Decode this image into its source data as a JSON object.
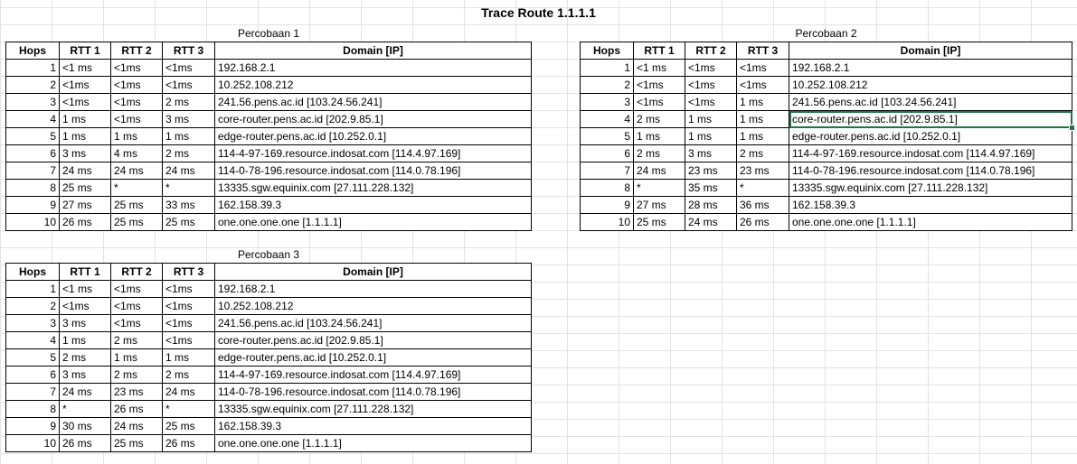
{
  "sheet": {
    "title": "Trace Route 1.1.1.1",
    "columns": {
      "hops": "Hops",
      "rtt1": "RTT 1",
      "rtt2": "RTT 2",
      "rtt3": "RTT 3",
      "domain": "Domain [IP]"
    },
    "trials": [
      {
        "caption": "Percobaan 1",
        "rows": [
          {
            "hop": "1",
            "rtt1": "<1 ms",
            "rtt2": "<1ms",
            "rtt3": "<1ms",
            "domain": "192.168.2.1"
          },
          {
            "hop": "2",
            "rtt1": "<1ms",
            "rtt2": "<1ms",
            "rtt3": "<1ms",
            "domain": "10.252.108.212"
          },
          {
            "hop": "3",
            "rtt1": "<1ms",
            "rtt2": "<1ms",
            "rtt3": "2 ms",
            "domain": "241.56.pens.ac.id [103.24.56.241]"
          },
          {
            "hop": "4",
            "rtt1": "1 ms",
            "rtt2": "<1ms",
            "rtt3": "3 ms",
            "domain": "core-router.pens.ac.id [202.9.85.1]"
          },
          {
            "hop": "5",
            "rtt1": "1 ms",
            "rtt2": "1 ms",
            "rtt3": "1 ms",
            "domain": "edge-router.pens.ac.id [10.252.0.1]"
          },
          {
            "hop": "6",
            "rtt1": "3 ms",
            "rtt2": "4 ms",
            "rtt3": "2 ms",
            "domain": "114-4-97-169.resource.indosat.com [114.4.97.169]"
          },
          {
            "hop": "7",
            "rtt1": "24 ms",
            "rtt2": "24 ms",
            "rtt3": "24 ms",
            "domain": "114-0-78-196.resource.indosat.com [114.0.78.196]"
          },
          {
            "hop": "8",
            "rtt1": "25 ms",
            "rtt2": "*",
            "rtt3": "*",
            "domain": "13335.sgw.equinix.com [27.111.228.132]"
          },
          {
            "hop": "9",
            "rtt1": "27 ms",
            "rtt2": "25 ms",
            "rtt3": "33 ms",
            "domain": "162.158.39.3"
          },
          {
            "hop": "10",
            "rtt1": "26 ms",
            "rtt2": "25 ms",
            "rtt3": "25 ms",
            "domain": "one.one.one.one [1.1.1.1]"
          }
        ]
      },
      {
        "caption": "Percobaan 2",
        "rows": [
          {
            "hop": "1",
            "rtt1": "<1 ms",
            "rtt2": "<1ms",
            "rtt3": "<1ms",
            "domain": "192.168.2.1"
          },
          {
            "hop": "2",
            "rtt1": "<1ms",
            "rtt2": "<1ms",
            "rtt3": "<1ms",
            "domain": "10.252.108.212"
          },
          {
            "hop": "3",
            "rtt1": "<1ms",
            "rtt2": "<1ms",
            "rtt3": "1 ms",
            "domain": "241.56.pens.ac.id [103.24.56.241]"
          },
          {
            "hop": "4",
            "rtt1": "2 ms",
            "rtt2": "1 ms",
            "rtt3": "1 ms",
            "domain": "core-router.pens.ac.id [202.9.85.1]"
          },
          {
            "hop": "5",
            "rtt1": "1 ms",
            "rtt2": "1 ms",
            "rtt3": "1 ms",
            "domain": "edge-router.pens.ac.id [10.252.0.1]"
          },
          {
            "hop": "6",
            "rtt1": "2 ms",
            "rtt2": "3 ms",
            "rtt3": "2 ms",
            "domain": "114-4-97-169.resource.indosat.com [114.4.97.169]"
          },
          {
            "hop": "7",
            "rtt1": "24 ms",
            "rtt2": "23 ms",
            "rtt3": "23 ms",
            "domain": "114-0-78-196.resource.indosat.com [114.0.78.196]"
          },
          {
            "hop": "8",
            "rtt1": "*",
            "rtt2": "35 ms",
            "rtt3": "*",
            "domain": "13335.sgw.equinix.com [27.111.228.132]"
          },
          {
            "hop": "9",
            "rtt1": "27 ms",
            "rtt2": "28 ms",
            "rtt3": "36 ms",
            "domain": "162.158.39.3"
          },
          {
            "hop": "10",
            "rtt1": "25 ms",
            "rtt2": "24 ms",
            "rtt3": "26 ms",
            "domain": "one.one.one.one [1.1.1.1]"
          }
        ]
      },
      {
        "caption": "Percobaan 3",
        "rows": [
          {
            "hop": "1",
            "rtt1": "<1 ms",
            "rtt2": "<1ms",
            "rtt3": "<1ms",
            "domain": "192.168.2.1"
          },
          {
            "hop": "2",
            "rtt1": "<1ms",
            "rtt2": "<1ms",
            "rtt3": "<1ms",
            "domain": "10.252.108.212"
          },
          {
            "hop": "3",
            "rtt1": "3 ms",
            "rtt2": "<1ms",
            "rtt3": "<1ms",
            "domain": "241.56.pens.ac.id [103.24.56.241]"
          },
          {
            "hop": "4",
            "rtt1": "1 ms",
            "rtt2": "2 ms",
            "rtt3": "<1ms",
            "domain": "core-router.pens.ac.id [202.9.85.1]"
          },
          {
            "hop": "5",
            "rtt1": "2 ms",
            "rtt2": "1 ms",
            "rtt3": "1 ms",
            "domain": "edge-router.pens.ac.id [10.252.0.1]"
          },
          {
            "hop": "6",
            "rtt1": "3 ms",
            "rtt2": "2 ms",
            "rtt3": "2 ms",
            "domain": "114-4-97-169.resource.indosat.com [114.4.97.169]"
          },
          {
            "hop": "7",
            "rtt1": "24 ms",
            "rtt2": "23 ms",
            "rtt3": "24 ms",
            "domain": "114-0-78-196.resource.indosat.com [114.0.78.196]"
          },
          {
            "hop": "8",
            "rtt1": "*",
            "rtt2": "26 ms",
            "rtt3": "*",
            "domain": "13335.sgw.equinix.com [27.111.228.132]"
          },
          {
            "hop": "9",
            "rtt1": "30 ms",
            "rtt2": "24 ms",
            "rtt3": "25 ms",
            "domain": "162.158.39.3"
          },
          {
            "hop": "10",
            "rtt1": "26 ms",
            "rtt2": "25 ms",
            "rtt3": "26 ms",
            "domain": "one.one.one.one [1.1.1.1]"
          }
        ]
      }
    ],
    "selection": {
      "trial": 1,
      "row": 3,
      "column": "domain"
    },
    "colors": {
      "selection": "#217346",
      "gridline": "#e3e3e3",
      "border": "#000000"
    }
  }
}
